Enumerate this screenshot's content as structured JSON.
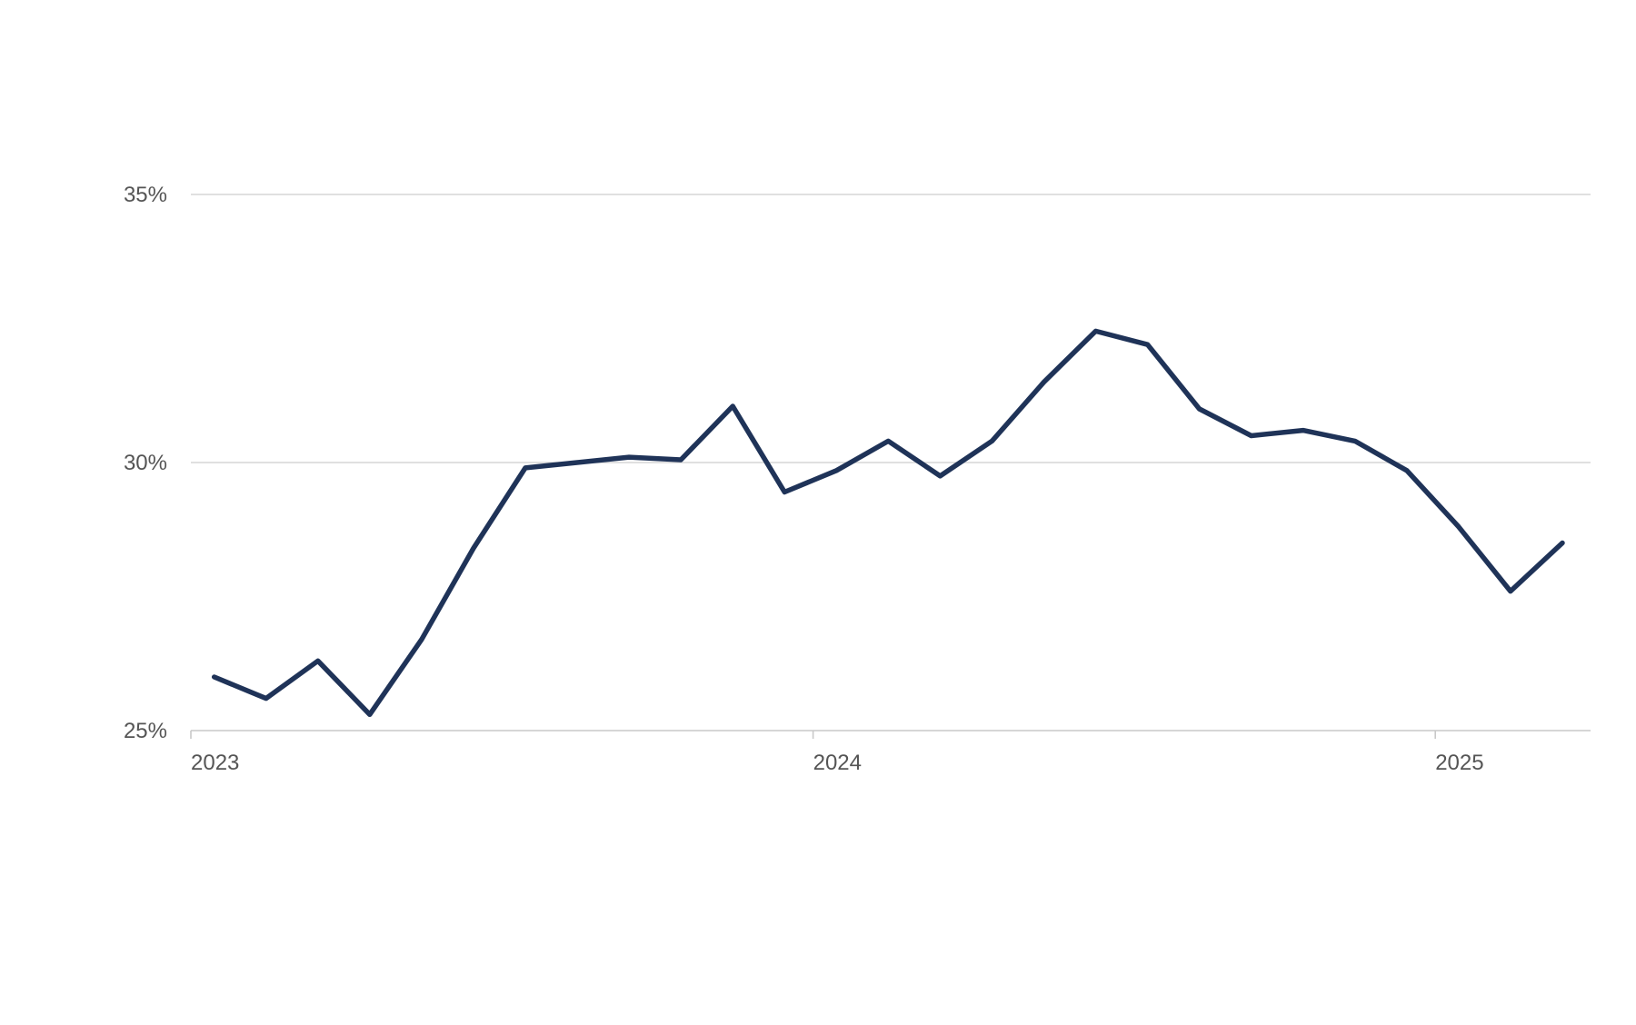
{
  "chart_data": {
    "type": "line",
    "x": [
      "2023-01",
      "2023-02",
      "2023-03",
      "2023-04",
      "2023-05",
      "2023-06",
      "2023-07",
      "2023-08",
      "2023-09",
      "2023-10",
      "2023-11",
      "2023-12",
      "2024-01",
      "2024-02",
      "2024-03",
      "2024-04",
      "2024-05",
      "2024-06",
      "2024-07",
      "2024-08",
      "2024-09",
      "2024-10",
      "2024-11",
      "2024-12",
      "2025-01",
      "2025-02",
      "2025-03"
    ],
    "series": [
      {
        "values": [
          26.0,
          25.6,
          26.3,
          25.3,
          26.7,
          28.4,
          29.9,
          30.0,
          30.1,
          30.05,
          31.05,
          29.45,
          29.85,
          30.4,
          29.75,
          30.4,
          31.5,
          32.45,
          32.2,
          31.0,
          30.5,
          30.6,
          30.4,
          29.85,
          28.8,
          27.6,
          28.5
        ],
        "color": "#1f3358"
      }
    ],
    "title": "",
    "xlabel": "",
    "ylabel": "",
    "ylim": [
      25,
      35
    ],
    "yticks": [
      25,
      30,
      35
    ],
    "ytick_labels": [
      "25%",
      "30%",
      "35%"
    ],
    "xticks": [
      "2023-01",
      "2024-01",
      "2025-01"
    ],
    "xtick_labels": [
      "2023",
      "2024",
      "2025"
    ],
    "grid": true,
    "legend": "none"
  }
}
